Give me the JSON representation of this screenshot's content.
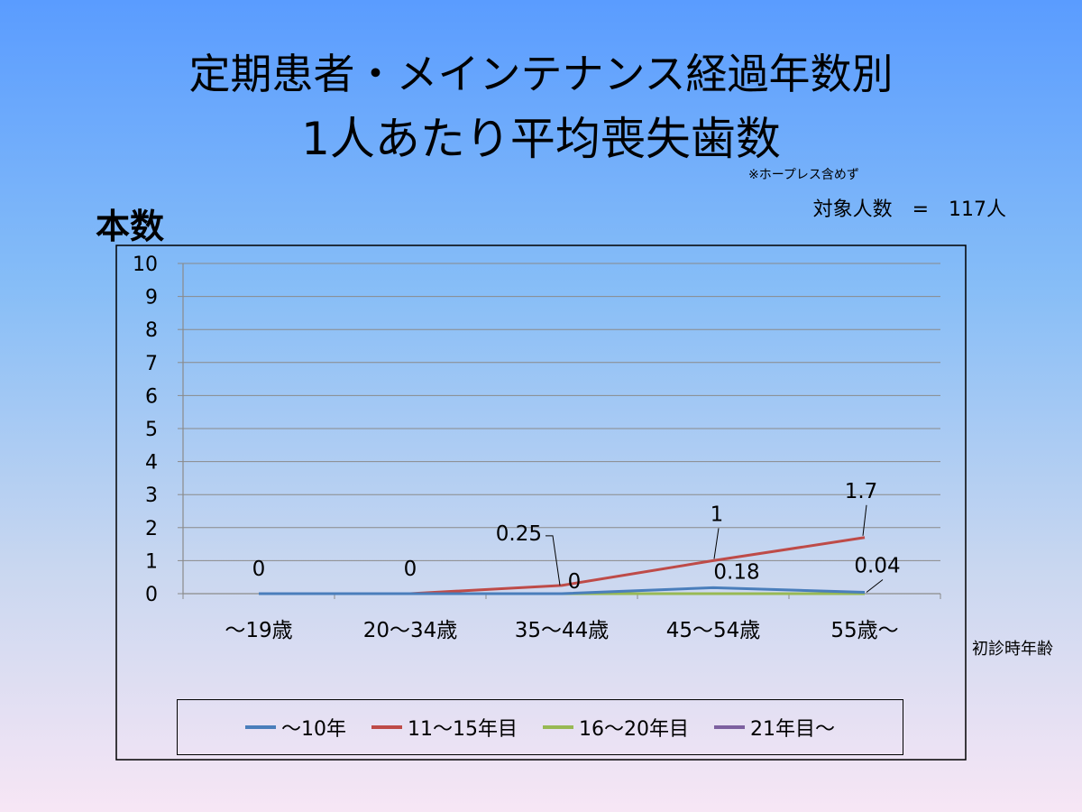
{
  "title_line1": "定期患者・メインテナンス経過年数別",
  "title_line2": "1人あたり平均喪失歯数",
  "note": "※ホープレス含めず",
  "patient_count": "対象人数　=　117人",
  "colors": {
    "series1": "#4a7ebb",
    "series2": "#be4b48",
    "series3": "#98b954",
    "series4": "#7d60a0"
  },
  "chart_data": {
    "type": "line",
    "ylabel": "本数",
    "xlabel": "初診時年齢",
    "ylim": [
      0,
      10
    ],
    "yticks": [
      "0",
      "1",
      "2",
      "3",
      "4",
      "5",
      "6",
      "7",
      "8",
      "9",
      "10"
    ],
    "grid": true,
    "legend_position": "bottom",
    "categories": [
      "～19歳",
      "20～34歳",
      "35～44歳",
      "45～54歳",
      "55歳～"
    ],
    "series": [
      {
        "name": "～10年",
        "values": [
          0,
          0,
          0,
          0.18,
          0.04
        ],
        "color": "#4a7ebb"
      },
      {
        "name": "11～15年目",
        "values": [
          0,
          0,
          0.25,
          1,
          1.7
        ],
        "color": "#be4b48"
      },
      {
        "name": "16～20年目",
        "values": [
          0,
          0,
          0,
          0,
          0
        ],
        "color": "#98b954"
      },
      {
        "name": "21年目～",
        "values": [
          0,
          0,
          0,
          0,
          0
        ],
        "color": "#7d60a0"
      }
    ],
    "data_labels": [
      {
        "series": 1,
        "index": 0,
        "text": "0"
      },
      {
        "series": 1,
        "index": 1,
        "text": "0"
      },
      {
        "series": 1,
        "index": 2,
        "text": "0.25"
      },
      {
        "series": 1,
        "index": 3,
        "text": "1"
      },
      {
        "series": 1,
        "index": 4,
        "text": "1.7"
      },
      {
        "series": 0,
        "index": 2,
        "text": "0"
      },
      {
        "series": 0,
        "index": 3,
        "text": "0.18"
      },
      {
        "series": 0,
        "index": 4,
        "text": "0.04"
      }
    ]
  }
}
